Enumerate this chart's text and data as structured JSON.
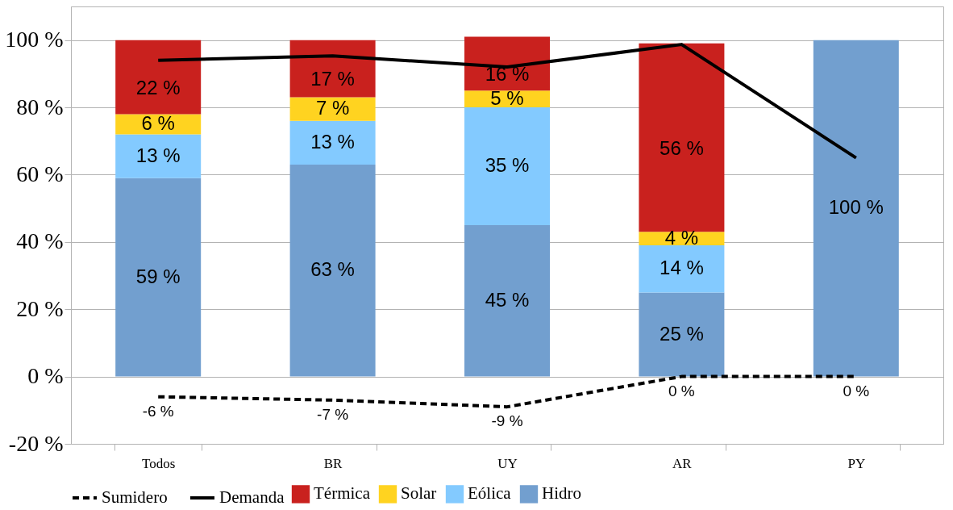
{
  "chart_data": {
    "type": "bar",
    "stacked": true,
    "categories": [
      "Todos",
      "BR",
      "UY",
      "AR",
      "PY"
    ],
    "series": [
      {
        "name": "Hidro",
        "color": "#729fcf",
        "values": [
          59,
          63,
          45,
          25,
          100
        ],
        "value_labels": [
          "59 %",
          "63 %",
          "45 %",
          "25 %",
          "100 %"
        ]
      },
      {
        "name": "Eólica",
        "color": "#83caff",
        "values": [
          13,
          13,
          35,
          14,
          0
        ],
        "value_labels": [
          "13 %",
          "13 %",
          "35 %",
          "14 %",
          null
        ]
      },
      {
        "name": "Solar",
        "color": "#ffd320",
        "values": [
          6,
          7,
          5,
          4,
          0
        ],
        "value_labels": [
          "6 %",
          "7 %",
          "5 %",
          "4 %",
          null
        ]
      },
      {
        "name": "Térmica",
        "color": "#c9211e",
        "values": [
          22,
          17,
          16,
          56,
          0
        ],
        "value_labels": [
          "22 %",
          "17 %",
          "16 %",
          "56 %",
          null
        ]
      },
      {
        "name": "Sumidero",
        "type": "line",
        "color": "#000000",
        "line_style": "dashed",
        "values": [
          -6,
          -7,
          -9,
          0,
          0
        ],
        "value_labels": [
          "-6 %",
          "-7 %",
          "-9 %",
          "0 %",
          "0 %"
        ]
      },
      {
        "name": "Demanda",
        "type": "line",
        "color": "#000000",
        "line_style": "solid",
        "values": [
          94,
          95.3,
          92,
          98.7,
          65
        ]
      }
    ],
    "ylim": [
      -20,
      110
    ],
    "yticks": [
      {
        "value": -20,
        "label": "-20 %"
      },
      {
        "value": 0,
        "label": "0 %"
      },
      {
        "value": 20,
        "label": "20 %"
      },
      {
        "value": 40,
        "label": "40 %"
      },
      {
        "value": 60,
        "label": "60 %"
      },
      {
        "value": 80,
        "label": "80 %"
      },
      {
        "value": 100,
        "label": "100 %"
      }
    ],
    "grid": "y",
    "legend": "bottom"
  }
}
